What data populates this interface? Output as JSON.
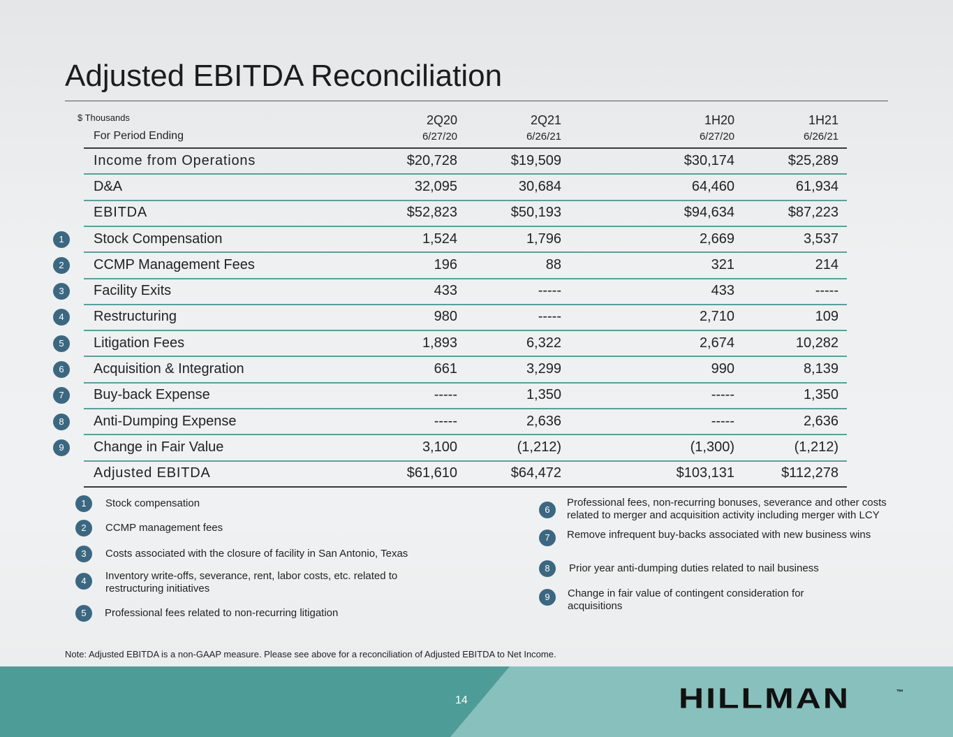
{
  "header": {
    "title": "Adjusted EBITDA Reconciliation"
  },
  "table": {
    "units": "$ Thousands",
    "period_label": "For Period Ending",
    "columns": [
      {
        "period": "2Q20",
        "date": "6/27/20"
      },
      {
        "period": "2Q21",
        "date": "6/26/21"
      },
      {
        "period": "1H20",
        "date": "6/27/20"
      },
      {
        "period": "1H21",
        "date": "6/26/21"
      }
    ],
    "rows": [
      {
        "label": "Income from Operations",
        "values": [
          "$20,728",
          "$19,509",
          "$30,174",
          "$25,289"
        ]
      },
      {
        "label": "D&A",
        "values": [
          "32,095",
          "30,684",
          "64,460",
          "61,934"
        ]
      },
      {
        "label": "EBITDA",
        "values": [
          "$52,823",
          "$50,193",
          "$94,634",
          "$87,223"
        ]
      },
      {
        "marker": "1",
        "label": "Stock Compensation",
        "values": [
          "1,524",
          "1,796",
          "2,669",
          "3,537"
        ]
      },
      {
        "marker": "2",
        "label": "CCMP Management Fees",
        "values": [
          "196",
          "88",
          "321",
          "214"
        ]
      },
      {
        "marker": "3",
        "label": "Facility Exits",
        "values": [
          "433",
          "-----",
          "433",
          "-----"
        ]
      },
      {
        "marker": "4",
        "label": "Restructuring",
        "values": [
          "980",
          "-----",
          "2,710",
          "109"
        ]
      },
      {
        "marker": "5",
        "label": "Litigation Fees",
        "values": [
          "1,893",
          "6,322",
          "2,674",
          "10,282"
        ]
      },
      {
        "marker": "6",
        "label": "Acquisition & Integration",
        "values": [
          "661",
          "3,299",
          "990",
          "8,139"
        ]
      },
      {
        "marker": "7",
        "label": "Buy-back Expense",
        "values": [
          "-----",
          "1,350",
          "-----",
          "1,350"
        ]
      },
      {
        "marker": "8",
        "label": "Anti-Dumping Expense",
        "values": [
          "-----",
          "2,636",
          "-----",
          "2,636"
        ]
      },
      {
        "marker": "9",
        "label": "Change in Fair Value",
        "values": [
          "3,100",
          "(1,212)",
          "(1,300)",
          "(1,212)"
        ]
      },
      {
        "label": "Adjusted EBITDA",
        "values": [
          "$61,610",
          "$64,472",
          "$103,131",
          "$112,278"
        ]
      }
    ]
  },
  "footnotes": [
    {
      "marker": "1",
      "text": "Stock compensation"
    },
    {
      "marker": "2",
      "text": "CCMP management fees"
    },
    {
      "marker": "3",
      "text": "Costs associated with the closure of facility in San Antonio, Texas"
    },
    {
      "marker": "4",
      "text": "Inventory write-offs, severance, rent, labor costs, etc. related to restructuring initiatives"
    },
    {
      "marker": "5",
      "text": "Professional fees related to non-recurring litigation"
    },
    {
      "marker": "6",
      "text": "Professional fees, non-recurring bonuses, severance and other costs related to merger and acquisition activity including merger with LCY"
    },
    {
      "marker": "7",
      "text": "Remove infrequent buy-backs associated with new business wins"
    },
    {
      "marker": "8",
      "text": "Prior year anti-dumping duties related to nail business"
    },
    {
      "marker": "9",
      "text": "Change in fair value of contingent consideration for acquisitions"
    }
  ],
  "note": "Note: Adjusted EBITDA is a non-GAAP measure. Please see above for a reconciliation of Adjusted EBITDA to Net Income.",
  "footer": {
    "page_number": "14",
    "logo": "HILLMAN",
    "trademark": "™"
  }
}
